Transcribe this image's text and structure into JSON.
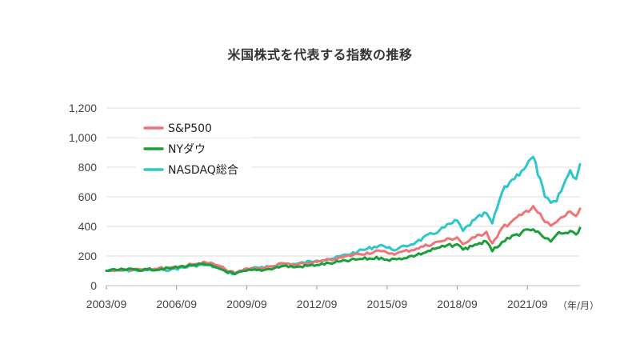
{
  "chart_data": {
    "type": "line",
    "title": "米国株式を代表する指数の推移",
    "x_unit_label": "（年/月）",
    "x_range": [
      "2003/09",
      "2023/12"
    ],
    "x_tick_labels": [
      "2003/09",
      "2006/09",
      "2009/09",
      "2012/09",
      "2015/09",
      "2018/09",
      "2021/09"
    ],
    "y_tick_labels": [
      "0",
      "200",
      "400",
      "600",
      "800",
      "1,000",
      "1,200"
    ],
    "ylim": [
      0,
      1200
    ],
    "grid": true,
    "legend_position": "top-left",
    "series": [
      {
        "name": "S&P500",
        "color": "#f07474",
        "points": [
          [
            "2003/09",
            100
          ],
          [
            "2004/06",
            110
          ],
          [
            "2005/06",
            114
          ],
          [
            "2006/06",
            121
          ],
          [
            "2007/06",
            144
          ],
          [
            "2007/12",
            157
          ],
          [
            "2008/06",
            137
          ],
          [
            "2008/10",
            110
          ],
          [
            "2009/03",
            83
          ],
          [
            "2009/09",
            115
          ],
          [
            "2010/06",
            118
          ],
          [
            "2011/04",
            150
          ],
          [
            "2011/10",
            137
          ],
          [
            "2012/09",
            160
          ],
          [
            "2013/06",
            178
          ],
          [
            "2014/06",
            214
          ],
          [
            "2015/06",
            232
          ],
          [
            "2015/09",
            222
          ],
          [
            "2016/02",
            218
          ],
          [
            "2016/12",
            250
          ],
          [
            "2017/12",
            298
          ],
          [
            "2018/09",
            326
          ],
          [
            "2018/12",
            280
          ],
          [
            "2019/06",
            325
          ],
          [
            "2019/12",
            363
          ],
          [
            "2020/03",
            285
          ],
          [
            "2020/08",
            390
          ],
          [
            "2020/12",
            421
          ],
          [
            "2021/06",
            477
          ],
          [
            "2021/12",
            537
          ],
          [
            "2022/06",
            430
          ],
          [
            "2022/09",
            405
          ],
          [
            "2022/12",
            430
          ],
          [
            "2023/07",
            500
          ],
          [
            "2023/10",
            470
          ],
          [
            "2023/12",
            520
          ]
        ]
      },
      {
        "name": "NYダウ",
        "color": "#1a9e3a",
        "points": [
          [
            "2003/09",
            100
          ],
          [
            "2004/06",
            108
          ],
          [
            "2005/06",
            108
          ],
          [
            "2006/06",
            117
          ],
          [
            "2007/06",
            140
          ],
          [
            "2007/12",
            142
          ],
          [
            "2008/06",
            120
          ],
          [
            "2008/10",
            100
          ],
          [
            "2009/03",
            78
          ],
          [
            "2009/09",
            101
          ],
          [
            "2010/06",
            106
          ],
          [
            "2011/04",
            133
          ],
          [
            "2011/10",
            125
          ],
          [
            "2012/09",
            140
          ],
          [
            "2013/06",
            155
          ],
          [
            "2014/06",
            178
          ],
          [
            "2015/06",
            188
          ],
          [
            "2015/09",
            175
          ],
          [
            "2016/02",
            178
          ],
          [
            "2016/12",
            206
          ],
          [
            "2017/12",
            257
          ],
          [
            "2018/09",
            280
          ],
          [
            "2018/12",
            243
          ],
          [
            "2019/06",
            277
          ],
          [
            "2019/12",
            297
          ],
          [
            "2020/03",
            232
          ],
          [
            "2020/08",
            295
          ],
          [
            "2020/12",
            318
          ],
          [
            "2021/06",
            358
          ],
          [
            "2021/12",
            380
          ],
          [
            "2022/06",
            320
          ],
          [
            "2022/09",
            298
          ],
          [
            "2022/12",
            345
          ],
          [
            "2023/07",
            370
          ],
          [
            "2023/10",
            345
          ],
          [
            "2023/12",
            390
          ]
        ]
      },
      {
        "name": "NASDAQ総合",
        "color": "#2ec7c9",
        "points": [
          [
            "2003/09",
            100
          ],
          [
            "2004/06",
            102
          ],
          [
            "2005/06",
            104
          ],
          [
            "2006/06",
            108
          ],
          [
            "2007/06",
            135
          ],
          [
            "2007/12",
            140
          ],
          [
            "2008/06",
            122
          ],
          [
            "2008/10",
            95
          ],
          [
            "2009/03",
            78
          ],
          [
            "2009/09",
            116
          ],
          [
            "2010/06",
            120
          ],
          [
            "2011/04",
            150
          ],
          [
            "2011/10",
            145
          ],
          [
            "2012/09",
            170
          ],
          [
            "2013/06",
            185
          ],
          [
            "2014/06",
            230
          ],
          [
            "2015/06",
            275
          ],
          [
            "2015/09",
            255
          ],
          [
            "2016/02",
            243
          ],
          [
            "2016/12",
            295
          ],
          [
            "2017/12",
            375
          ],
          [
            "2018/09",
            440
          ],
          [
            "2018/12",
            370
          ],
          [
            "2019/06",
            445
          ],
          [
            "2019/12",
            490
          ],
          [
            "2020/03",
            420
          ],
          [
            "2020/08",
            630
          ],
          [
            "2020/12",
            700
          ],
          [
            "2021/06",
            775
          ],
          [
            "2021/12",
            870
          ],
          [
            "2022/06",
            600
          ],
          [
            "2022/09",
            560
          ],
          [
            "2022/12",
            570
          ],
          [
            "2023/07",
            780
          ],
          [
            "2023/10",
            720
          ],
          [
            "2023/12",
            820
          ]
        ]
      }
    ]
  }
}
